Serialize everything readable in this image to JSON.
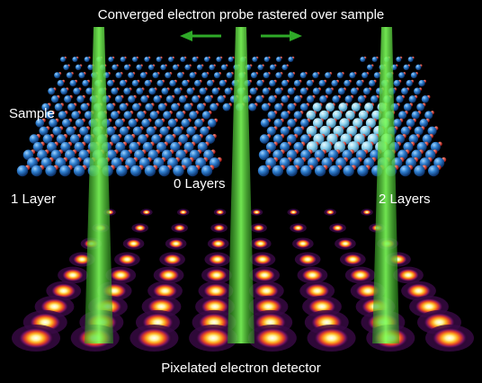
{
  "labels": {
    "title": "Converged electron probe rastered over sample",
    "sample": "Sample",
    "one_layer": "1 Layer",
    "zero_layers": "0 Layers",
    "two_layers": "2 Layers",
    "detector": "Pixelated electron detector"
  }
}
